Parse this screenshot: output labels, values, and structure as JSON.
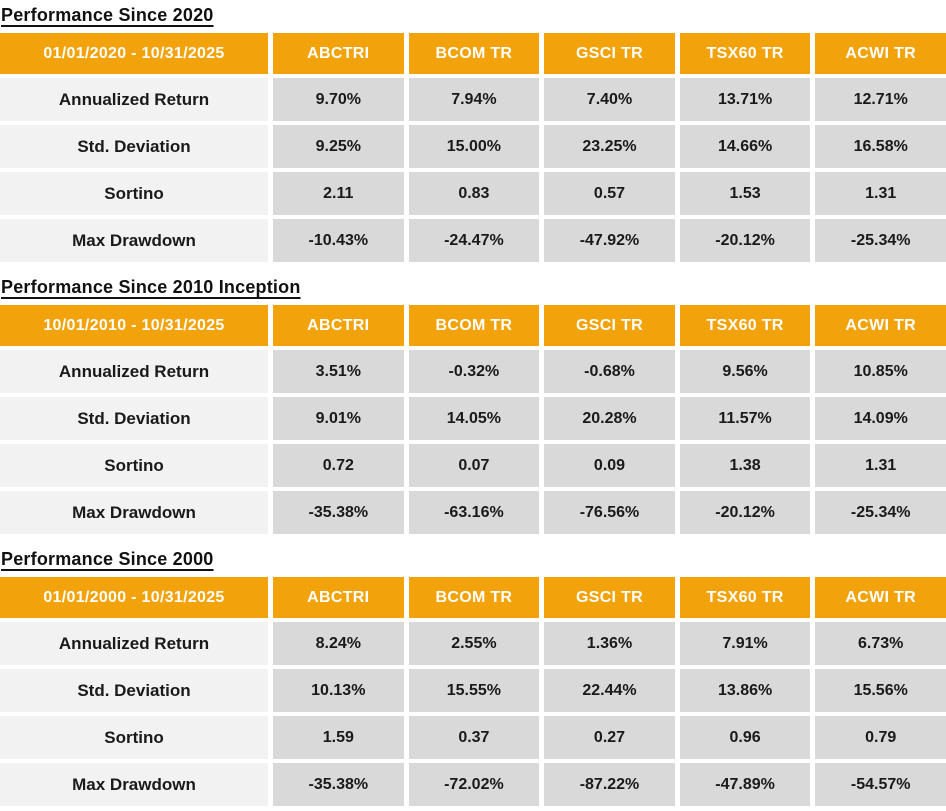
{
  "theme": {
    "accent_color": "#F2A30B",
    "header_text_color": "#FFFFFF",
    "value_cell_bg": "#D9D9D9",
    "label_cell_bg": "#F2F2F2",
    "text_color": "#1A1A1A"
  },
  "chart_data": [
    {
      "type": "table",
      "title": "Performance Since 2020",
      "period": "01/01/2020 - 10/31/2025",
      "columns": [
        "ABCTRI",
        "BCOM TR",
        "GSCI TR",
        "TSX60 TR",
        "ACWI TR"
      ],
      "rows": [
        {
          "label": "Annualized Return",
          "values": [
            "9.70%",
            "7.94%",
            "7.40%",
            "13.71%",
            "12.71%"
          ]
        },
        {
          "label": "Std. Deviation",
          "values": [
            "9.25%",
            "15.00%",
            "23.25%",
            "14.66%",
            "16.58%"
          ]
        },
        {
          "label": "Sortino",
          "values": [
            "2.11",
            "0.83",
            "0.57",
            "1.53",
            "1.31"
          ]
        },
        {
          "label": "Max Drawdown",
          "values": [
            "-10.43%",
            "-24.47%",
            "-47.92%",
            "-20.12%",
            "-25.34%"
          ]
        }
      ]
    },
    {
      "type": "table",
      "title": "Performance Since 2010 Inception",
      "period": "10/01/2010 - 10/31/2025",
      "columns": [
        "ABCTRI",
        "BCOM TR",
        "GSCI TR",
        "TSX60 TR",
        "ACWI TR"
      ],
      "rows": [
        {
          "label": "Annualized Return",
          "values": [
            "3.51%",
            "-0.32%",
            "-0.68%",
            "9.56%",
            "10.85%"
          ]
        },
        {
          "label": "Std. Deviation",
          "values": [
            "9.01%",
            "14.05%",
            "20.28%",
            "11.57%",
            "14.09%"
          ]
        },
        {
          "label": "Sortino",
          "values": [
            "0.72",
            "0.07",
            "0.09",
            "1.38",
            "1.31"
          ]
        },
        {
          "label": "Max Drawdown",
          "values": [
            "-35.38%",
            "-63.16%",
            "-76.56%",
            "-20.12%",
            "-25.34%"
          ]
        }
      ]
    },
    {
      "type": "table",
      "title": "Performance Since 2000",
      "period": "01/01/2000 - 10/31/2025",
      "columns": [
        "ABCTRI",
        "BCOM TR",
        "GSCI TR",
        "TSX60 TR",
        "ACWI TR"
      ],
      "rows": [
        {
          "label": "Annualized Return",
          "values": [
            "8.24%",
            "2.55%",
            "1.36%",
            "7.91%",
            "6.73%"
          ]
        },
        {
          "label": "Std. Deviation",
          "values": [
            "10.13%",
            "15.55%",
            "22.44%",
            "13.86%",
            "15.56%"
          ]
        },
        {
          "label": "Sortino",
          "values": [
            "1.59",
            "0.37",
            "0.27",
            "0.96",
            "0.79"
          ]
        },
        {
          "label": "Max Drawdown",
          "values": [
            "-35.38%",
            "-72.02%",
            "-87.22%",
            "-47.89%",
            "-54.57%"
          ]
        }
      ]
    }
  ]
}
